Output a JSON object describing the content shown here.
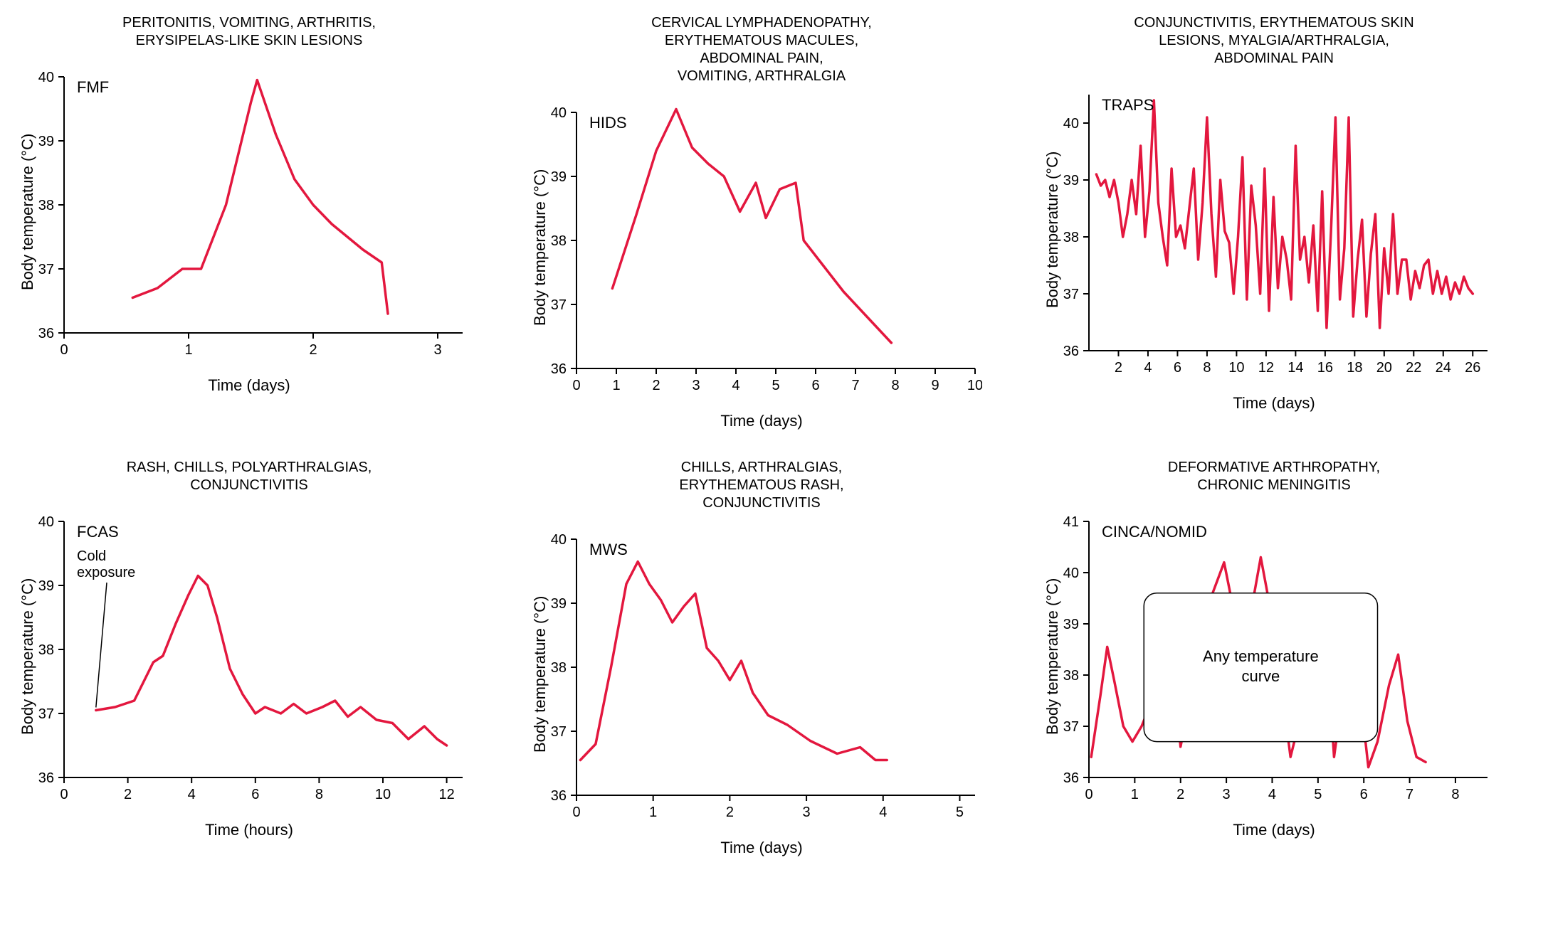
{
  "global": {
    "line_color": "#e3173e",
    "axis_color": "#000000",
    "background_color": "#ffffff",
    "line_width": 3.5,
    "axis_width": 2,
    "tick_fontsize": 20,
    "axis_label_fontsize": 22,
    "title_fontsize": 20,
    "inset_label_fontsize": 22
  },
  "panels": [
    {
      "id": "fmf",
      "title": "PERITONITIS, VOMITING, ARTHRITIS,\nERYSIPELAS-LIKE SKIN LESIONS",
      "inset_label": "FMF",
      "ylabel": "Body temperature (°C)",
      "xlabel": "Time (days)",
      "ylim": [
        36,
        40
      ],
      "yticks": [
        36,
        37,
        38,
        39,
        40
      ],
      "xlim": [
        0,
        3.2
      ],
      "xticks": [
        0,
        1,
        2,
        3
      ],
      "data": {
        "x": [
          0.55,
          0.75,
          0.95,
          1.1,
          1.3,
          1.5,
          1.55,
          1.7,
          1.85,
          2.0,
          2.15,
          2.4,
          2.55,
          2.6
        ],
        "y": [
          36.55,
          36.7,
          37.0,
          37.0,
          38.0,
          39.6,
          39.95,
          39.1,
          38.4,
          38.0,
          37.7,
          37.3,
          37.1,
          36.3
        ]
      }
    },
    {
      "id": "hids",
      "title": "CERVICAL LYMPHADENOPATHY,\nERYTHEMATOUS MACULES,\nABDOMINAL PAIN,\nVOMITING, ARTHRALGIA",
      "inset_label": "HIDS",
      "ylabel": "Body temperature (°C)",
      "xlabel": "Time (days)",
      "ylim": [
        36,
        40
      ],
      "yticks": [
        36,
        37,
        38,
        39,
        40
      ],
      "xlim": [
        0,
        10
      ],
      "xticks": [
        0,
        1,
        2,
        3,
        4,
        5,
        6,
        7,
        8,
        9,
        10
      ],
      "data": {
        "x": [
          0.9,
          1.5,
          2.0,
          2.5,
          2.9,
          3.3,
          3.7,
          4.1,
          4.5,
          4.75,
          5.1,
          5.5,
          5.7,
          6.2,
          6.7,
          7.3,
          7.9
        ],
        "y": [
          37.25,
          38.4,
          39.4,
          40.05,
          39.45,
          39.2,
          39.0,
          38.45,
          38.9,
          38.35,
          38.8,
          38.9,
          38.0,
          37.6,
          37.2,
          36.8,
          36.4
        ]
      }
    },
    {
      "id": "traps",
      "title": "CONJUNCTIVITIS, ERYTHEMATOUS SKIN\nLESIONS, MYALGIA/ARTHRALGIA,\nABDOMINAL PAIN",
      "inset_label": "TRAPS",
      "ylabel": "Body temperature (°C)",
      "xlabel": "Time (days)",
      "ylim": [
        36,
        40.5
      ],
      "yticks": [
        36,
        37,
        38,
        39,
        40
      ],
      "xlim": [
        0,
        27
      ],
      "xticks": [
        2,
        4,
        6,
        8,
        10,
        12,
        14,
        16,
        18,
        20,
        22,
        24,
        26
      ],
      "data": {
        "x": [
          0.5,
          0.8,
          1.1,
          1.4,
          1.7,
          2.0,
          2.3,
          2.6,
          2.9,
          3.2,
          3.5,
          3.8,
          4.1,
          4.4,
          4.7,
          5.0,
          5.3,
          5.6,
          5.9,
          6.2,
          6.5,
          6.8,
          7.1,
          7.4,
          7.7,
          8.0,
          8.3,
          8.6,
          8.9,
          9.2,
          9.5,
          9.8,
          10.1,
          10.4,
          10.7,
          11.0,
          11.3,
          11.6,
          11.9,
          12.2,
          12.5,
          12.8,
          13.1,
          13.4,
          13.7,
          14.0,
          14.3,
          14.6,
          14.9,
          15.2,
          15.5,
          15.8,
          16.1,
          16.4,
          16.7,
          17.0,
          17.3,
          17.6,
          17.9,
          18.2,
          18.5,
          18.8,
          19.1,
          19.4,
          19.7,
          20.0,
          20.3,
          20.6,
          20.9,
          21.2,
          21.5,
          21.8,
          22.1,
          22.4,
          22.7,
          23.0,
          23.3,
          23.6,
          23.9,
          24.2,
          24.5,
          24.8,
          25.1,
          25.4,
          25.7,
          26.0
        ],
        "y": [
          39.1,
          38.9,
          39.0,
          38.7,
          39.0,
          38.6,
          38.0,
          38.4,
          39.0,
          38.4,
          39.6,
          38.0,
          38.8,
          40.4,
          38.6,
          38.0,
          37.5,
          39.2,
          38.0,
          38.2,
          37.8,
          38.5,
          39.2,
          37.6,
          38.6,
          40.1,
          38.4,
          37.3,
          39.0,
          38.1,
          37.9,
          37.0,
          38.0,
          39.4,
          36.9,
          38.9,
          38.2,
          37.0,
          39.2,
          36.7,
          38.7,
          37.1,
          38.0,
          37.6,
          36.9,
          39.6,
          37.6,
          38.0,
          37.2,
          38.2,
          36.7,
          38.8,
          36.4,
          38.1,
          40.1,
          36.9,
          37.8,
          40.1,
          36.6,
          37.6,
          38.3,
          36.6,
          37.7,
          38.4,
          36.4,
          37.8,
          37.0,
          38.4,
          37.0,
          37.6,
          37.6,
          36.9,
          37.4,
          37.1,
          37.5,
          37.6,
          37.0,
          37.4,
          37.0,
          37.3,
          36.9,
          37.2,
          37.0,
          37.3,
          37.1,
          37.0
        ]
      }
    },
    {
      "id": "fcas",
      "title": "RASH, CHILLS, POLYARTHRALGIAS,\nCONJUNCTIVITIS",
      "inset_label": "FCAS",
      "extra_label": "Cold\nexposure",
      "ylabel": "Body temperature (°C)",
      "xlabel": "Time (hours)",
      "ylim": [
        36,
        40
      ],
      "yticks": [
        36,
        37,
        38,
        39,
        40
      ],
      "xlim": [
        0,
        12.5
      ],
      "xticks": [
        0,
        2,
        4,
        6,
        8,
        10,
        12
      ],
      "data": {
        "x": [
          1.0,
          1.6,
          2.2,
          2.5,
          2.8,
          3.1,
          3.5,
          3.9,
          4.2,
          4.5,
          4.8,
          5.2,
          5.6,
          6.0,
          6.3,
          6.8,
          7.2,
          7.6,
          8.1,
          8.5,
          8.9,
          9.3,
          9.8,
          10.3,
          10.8,
          11.3,
          11.7,
          12.0
        ],
        "y": [
          37.05,
          37.1,
          37.2,
          37.5,
          37.8,
          37.9,
          38.4,
          38.85,
          39.15,
          39.0,
          38.5,
          37.7,
          37.3,
          37.0,
          37.1,
          37.0,
          37.15,
          37.0,
          37.1,
          37.2,
          36.95,
          37.1,
          36.9,
          36.85,
          36.6,
          36.8,
          36.6,
          36.5
        ]
      }
    },
    {
      "id": "mws",
      "title": "CHILLS, ARTHRALGIAS,\nERYTHEMATOUS RASH,\nCONJUNCTIVITIS",
      "inset_label": "MWS",
      "ylabel": "Body temperature (°C)",
      "xlabel": "Time (days)",
      "ylim": [
        36,
        40
      ],
      "yticks": [
        36,
        37,
        38,
        39,
        40
      ],
      "xlim": [
        0,
        5.2
      ],
      "xticks": [
        0,
        1,
        2,
        3,
        4,
        5
      ],
      "data": {
        "x": [
          0.05,
          0.25,
          0.45,
          0.65,
          0.8,
          0.95,
          1.1,
          1.25,
          1.4,
          1.55,
          1.7,
          1.85,
          2.0,
          2.15,
          2.3,
          2.5,
          2.75,
          3.05,
          3.4,
          3.7,
          3.9,
          4.05
        ],
        "y": [
          36.55,
          36.8,
          38.0,
          39.3,
          39.65,
          39.3,
          39.05,
          38.7,
          38.95,
          39.15,
          38.3,
          38.1,
          37.8,
          38.1,
          37.6,
          37.25,
          37.1,
          36.85,
          36.65,
          36.75,
          36.55,
          36.55
        ]
      }
    },
    {
      "id": "cinca",
      "title": "DEFORMATIVE ARTHROPATHY,\nCHRONIC MENINGITIS",
      "inset_label": "CINCA/NOMID",
      "overlay_text": "Any temperature\ncurve",
      "ylabel": "Body temperature (°C)",
      "xlabel": "Time (days)",
      "ylim": [
        36,
        41
      ],
      "yticks": [
        36,
        37,
        38,
        39,
        40,
        41
      ],
      "xlim": [
        0,
        8.7
      ],
      "xticks": [
        0,
        1,
        2,
        3,
        4,
        5,
        6,
        7,
        8
      ],
      "data": {
        "x": [
          0.05,
          0.25,
          0.4,
          0.55,
          0.75,
          0.95,
          1.15,
          1.35,
          1.55,
          1.8,
          2.0,
          2.2,
          2.45,
          2.7,
          2.95,
          3.15,
          3.35,
          3.55,
          3.75,
          4.0,
          4.2,
          4.4,
          4.65,
          4.9,
          5.15,
          5.35,
          5.55,
          5.8,
          6.1,
          6.3,
          6.55,
          6.75,
          6.95,
          7.15,
          7.35
        ],
        "y": [
          36.4,
          37.6,
          38.55,
          37.9,
          37.0,
          36.7,
          37.0,
          37.45,
          37.9,
          38.6,
          36.6,
          37.5,
          38.8,
          39.6,
          40.2,
          39.3,
          38.0,
          39.3,
          40.3,
          39.1,
          37.8,
          36.4,
          37.3,
          38.3,
          39.2,
          36.4,
          37.7,
          38.6,
          36.2,
          36.7,
          37.8,
          38.4,
          37.1,
          36.4,
          36.3
        ]
      }
    }
  ]
}
